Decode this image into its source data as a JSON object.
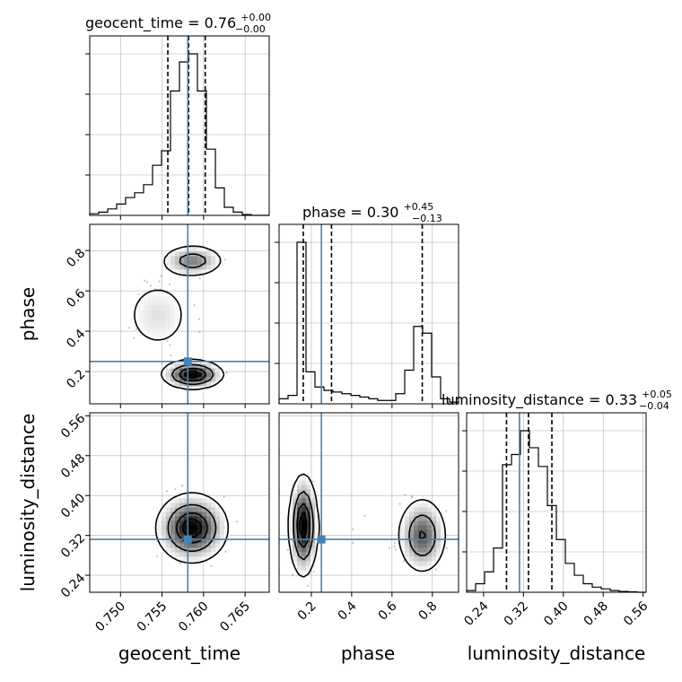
{
  "chart_data": {
    "type": "corner",
    "parameters": [
      "geocent_time",
      "phase",
      "luminosity_distance"
    ],
    "titles": {
      "geocent_time": {
        "name": "geocent_time",
        "value": "0.76",
        "upper": "+0.00",
        "lower": "−0.00"
      },
      "phase": {
        "name": "phase",
        "value": "0.30",
        "upper": "+0.45",
        "lower": "−0.13"
      },
      "luminosity_distance": {
        "name": "luminosity_distance",
        "value": "0.33",
        "upper": "+0.05",
        "lower": "−0.04"
      }
    },
    "axes": {
      "geocent_time": {
        "label": "geocent_time",
        "range": [
          0.7463,
          0.7679
        ],
        "ticks": [
          0.75,
          0.755,
          0.76,
          0.765
        ],
        "tick_labels": [
          "0.750",
          "0.755",
          "0.760",
          "0.765"
        ]
      },
      "phase": {
        "label": "phase",
        "range": [
          0.04,
          0.93
        ],
        "ticks": [
          0.2,
          0.4,
          0.6,
          0.8
        ],
        "tick_labels": [
          "0.2",
          "0.4",
          "0.6",
          "0.8"
        ]
      },
      "luminosity_distance": {
        "label": "luminosity_distance",
        "range": [
          0.206,
          0.566
        ],
        "ticks": [
          0.24,
          0.32,
          0.4,
          0.48,
          0.56
        ],
        "tick_labels": [
          "0.24",
          "0.32",
          "0.40",
          "0.48",
          "0.56"
        ]
      }
    },
    "truths": {
      "geocent_time": 0.7581,
      "phase": 0.25,
      "luminosity_distance": 0.312
    },
    "quantiles": {
      "geocent_time": [
        0.7557,
        0.7582,
        0.7602
      ],
      "phase": [
        0.16,
        0.3,
        0.75
      ],
      "luminosity_distance": [
        0.286,
        0.33,
        0.377
      ]
    },
    "histograms": {
      "geocent_time": {
        "edges": [
          0.7463,
          0.74738,
          0.74846,
          0.74954,
          0.75062,
          0.7517,
          0.75278,
          0.75386,
          0.75494,
          0.75602,
          0.7571,
          0.75818,
          0.75926,
          0.76034,
          0.76142,
          0.7625,
          0.76358,
          0.76466,
          0.76574,
          0.76682,
          0.7679
        ],
        "counts": [
          0.01,
          0.02,
          0.04,
          0.07,
          0.11,
          0.14,
          0.19,
          0.31,
          0.4,
          0.77,
          0.95,
          1.0,
          0.77,
          0.41,
          0.17,
          0.05,
          0.02,
          0.005,
          0.0,
          0.0
        ]
      },
      "phase": {
        "edges": [
          0.04,
          0.0845,
          0.129,
          0.1735,
          0.218,
          0.2625,
          0.307,
          0.3515,
          0.396,
          0.4405,
          0.485,
          0.5295,
          0.574,
          0.6185,
          0.663,
          0.7075,
          0.752,
          0.7965,
          0.841,
          0.8855,
          0.93
        ],
        "counts": [
          0.03,
          0.05,
          0.96,
          0.19,
          0.1,
          0.08,
          0.07,
          0.06,
          0.05,
          0.04,
          0.03,
          0.02,
          0.02,
          0.06,
          0.2,
          0.46,
          0.42,
          0.16,
          0.03,
          0.01
        ]
      },
      "luminosity_distance": {
        "edges": [
          0.206,
          0.224,
          0.242,
          0.26,
          0.278,
          0.296,
          0.314,
          0.332,
          0.35,
          0.368,
          0.386,
          0.404,
          0.422,
          0.44,
          0.458,
          0.476,
          0.494,
          0.512,
          0.53,
          0.548,
          0.566
        ],
        "counts": [
          0.01,
          0.05,
          0.12,
          0.26,
          0.75,
          0.81,
          0.95,
          0.85,
          0.74,
          0.51,
          0.31,
          0.17,
          0.1,
          0.05,
          0.03,
          0.02,
          0.01,
          0.005,
          0.003,
          0.0
        ]
      }
    },
    "densities": [
      {
        "x": "geocent_time",
        "y": "phase",
        "blobs": [
          {
            "cx": 0.7587,
            "cy": 0.185,
            "sx": 0.0018,
            "sy": 0.035,
            "w": 1.0
          },
          {
            "cx": 0.7587,
            "cy": 0.75,
            "sx": 0.0019,
            "sy": 0.04,
            "w": 0.55
          },
          {
            "cx": 0.7545,
            "cy": 0.48,
            "sx": 0.0025,
            "sy": 0.11,
            "w": 0.22
          }
        ]
      },
      {
        "x": "geocent_time",
        "y": "luminosity_distance",
        "blobs": [
          {
            "cx": 0.7586,
            "cy": 0.335,
            "sx": 0.0021,
            "sy": 0.034,
            "w": 1.0
          }
        ]
      },
      {
        "x": "phase",
        "y": "luminosity_distance",
        "blobs": [
          {
            "cx": 0.16,
            "cy": 0.34,
            "sx": 0.035,
            "sy": 0.05,
            "w": 1.0
          },
          {
            "cx": 0.75,
            "cy": 0.32,
            "sx": 0.06,
            "sy": 0.038,
            "w": 0.7
          },
          {
            "cx": 0.4,
            "cy": 0.33,
            "sx": 0.11,
            "sy": 0.03,
            "w": 0.08
          }
        ]
      }
    ],
    "contour_levels": [
      0.118,
      0.393,
      0.675,
      0.865
    ],
    "grid": true,
    "colors": {
      "truth": "#4682b4",
      "hist": "#000000",
      "grid": "#b0b0b0",
      "quantile": "#000000"
    }
  }
}
